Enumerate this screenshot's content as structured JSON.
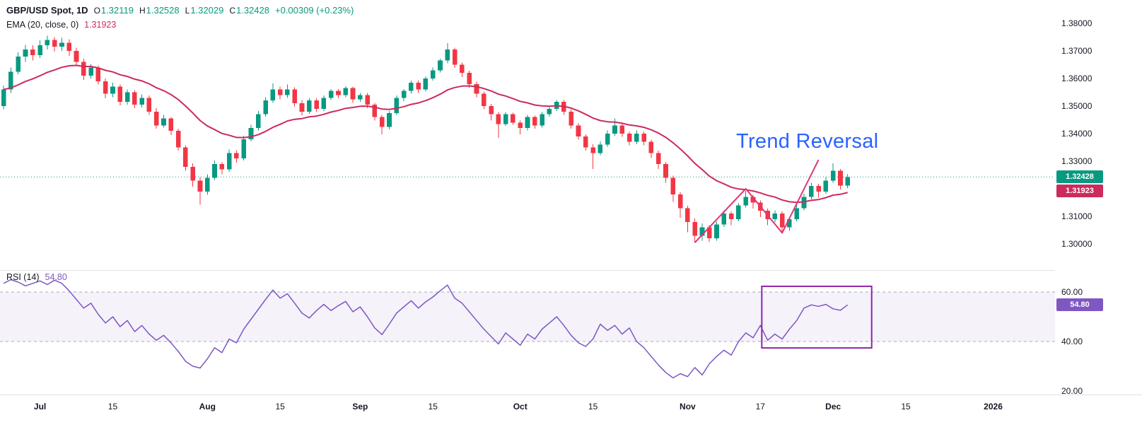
{
  "header": {
    "symbol_line": {
      "title": "GBP/USD Spot, 1D",
      "o_label": "O",
      "o_value": "1.32119",
      "h_label": "H",
      "h_value": "1.32528",
      "l_label": "L",
      "l_value": "1.32029",
      "c_label": "C",
      "c_value": "1.32428",
      "change": "+0.00309 (+0.23%)"
    },
    "ema_line": {
      "label": "EMA (20, close, 0)",
      "value": "1.31923"
    }
  },
  "rsi_legend": {
    "label": "RSI (14)",
    "value": "54.80"
  },
  "annotation": {
    "text": "Trend Reversal"
  },
  "badges": {
    "close": {
      "text": "1.32428",
      "value": 1.32428
    },
    "ema": {
      "text": "1.31923",
      "value": 1.31923
    },
    "rsi": {
      "text": "54.80",
      "value": 54.8
    }
  },
  "price_axis": {
    "labels": [
      {
        "text": "1.38000",
        "value": 1.38
      },
      {
        "text": "1.37000",
        "value": 1.37
      },
      {
        "text": "1.36000",
        "value": 1.36
      },
      {
        "text": "1.35000",
        "value": 1.35
      },
      {
        "text": "1.34000",
        "value": 1.34
      },
      {
        "text": "1.33000",
        "value": 1.33
      },
      {
        "text": "1.31000",
        "value": 1.31
      },
      {
        "text": "1.30000",
        "value": 1.3
      }
    ]
  },
  "rsi_axis": {
    "labels": [
      {
        "text": "60.00",
        "value": 60
      },
      {
        "text": "40.00",
        "value": 40
      },
      {
        "text": "20.00",
        "value": 20
      }
    ]
  },
  "time_axis": {
    "labels": [
      {
        "text": "Jul",
        "i": 5,
        "strong": true
      },
      {
        "text": "15",
        "i": 15
      },
      {
        "text": "Aug",
        "i": 28,
        "strong": true
      },
      {
        "text": "15",
        "i": 38
      },
      {
        "text": "Sep",
        "i": 49,
        "strong": true
      },
      {
        "text": "15",
        "i": 59
      },
      {
        "text": "Oct",
        "i": 71,
        "strong": true
      },
      {
        "text": "15",
        "i": 81
      },
      {
        "text": "Nov",
        "i": 94,
        "strong": true
      },
      {
        "text": "17",
        "i": 104
      },
      {
        "text": "Dec",
        "i": 114,
        "strong": true
      },
      {
        "text": "15",
        "i": 124
      },
      {
        "text": "2026",
        "i": 136,
        "strong": true
      }
    ]
  },
  "style": {
    "up_color": "#089981",
    "down_color": "#f23645",
    "ema_color": "#cc2b5d",
    "rsi_color": "#7e57c2",
    "annotation_color": "#2962ff",
    "drawing_color": "#8e24aa",
    "trendline_color": "#e0357a",
    "text_color": "#131722",
    "separator_color": "#e0e3eb",
    "band_line_color": "#a5abbd"
  },
  "chart_data": {
    "type": "candlestick",
    "title": "GBP/USD Spot, 1D",
    "panes": [
      "price",
      "rsi"
    ],
    "price_ylim": [
      1.2905,
      1.3885
    ],
    "rsi_ylim": [
      18.6,
      68.9
    ],
    "x_tick_labels": [
      "Jul",
      "15",
      "Aug",
      "15",
      "Sep",
      "15",
      "Oct",
      "15",
      "Nov",
      "17",
      "Dec",
      "15",
      "2026"
    ],
    "last_close": 1.32428,
    "ohlc": [
      [
        1.35,
        1.3575,
        1.3488,
        1.356
      ],
      [
        1.356,
        1.364,
        1.3548,
        1.3625
      ],
      [
        1.3625,
        1.3695,
        1.3615,
        1.368
      ],
      [
        1.368,
        1.3722,
        1.366,
        1.3705
      ],
      [
        1.3705,
        1.372,
        1.3665,
        1.3685
      ],
      [
        1.3685,
        1.3738,
        1.3675,
        1.372
      ],
      [
        1.372,
        1.3755,
        1.3705,
        1.374
      ],
      [
        1.374,
        1.375,
        1.3698,
        1.3715
      ],
      [
        1.3715,
        1.3748,
        1.37,
        1.373
      ],
      [
        1.373,
        1.3742,
        1.3682,
        1.37
      ],
      [
        1.37,
        1.3712,
        1.3645,
        1.366
      ],
      [
        1.366,
        1.3672,
        1.3595,
        1.361
      ],
      [
        1.361,
        1.3652,
        1.36,
        1.364
      ],
      [
        1.364,
        1.3648,
        1.3578,
        1.359
      ],
      [
        1.359,
        1.36,
        1.3528,
        1.3545
      ],
      [
        1.3545,
        1.3585,
        1.3532,
        1.357
      ],
      [
        1.357,
        1.3578,
        1.3502,
        1.3515
      ],
      [
        1.3515,
        1.356,
        1.3505,
        1.355
      ],
      [
        1.355,
        1.3558,
        1.3492,
        1.3505
      ],
      [
        1.3505,
        1.3542,
        1.3495,
        1.353
      ],
      [
        1.353,
        1.3538,
        1.3468,
        1.348
      ],
      [
        1.348,
        1.3492,
        1.3418,
        1.343
      ],
      [
        1.343,
        1.3468,
        1.3422,
        1.3455
      ],
      [
        1.3455,
        1.346,
        1.3395,
        1.341
      ],
      [
        1.341,
        1.3418,
        1.3338,
        1.335
      ],
      [
        1.335,
        1.3358,
        1.3265,
        1.328
      ],
      [
        1.328,
        1.3292,
        1.3208,
        1.323
      ],
      [
        1.323,
        1.3242,
        1.3142,
        1.319
      ],
      [
        1.319,
        1.3252,
        1.3178,
        1.324
      ],
      [
        1.324,
        1.3302,
        1.3232,
        1.329
      ],
      [
        1.329,
        1.3298,
        1.3252,
        1.327
      ],
      [
        1.327,
        1.3342,
        1.3262,
        1.333
      ],
      [
        1.333,
        1.334,
        1.3295,
        1.331
      ],
      [
        1.331,
        1.3392,
        1.3302,
        1.338
      ],
      [
        1.338,
        1.3432,
        1.3372,
        1.342
      ],
      [
        1.342,
        1.3482,
        1.3412,
        1.347
      ],
      [
        1.347,
        1.3532,
        1.3462,
        1.352
      ],
      [
        1.352,
        1.3582,
        1.3512,
        1.356
      ],
      [
        1.356,
        1.357,
        1.3525,
        1.354
      ],
      [
        1.354,
        1.3578,
        1.353,
        1.356
      ],
      [
        1.356,
        1.3568,
        1.3498,
        1.351
      ],
      [
        1.351,
        1.3522,
        1.3465,
        1.348
      ],
      [
        1.348,
        1.3528,
        1.3472,
        1.352
      ],
      [
        1.352,
        1.3528,
        1.3478,
        1.349
      ],
      [
        1.349,
        1.3538,
        1.3482,
        1.353
      ],
      [
        1.353,
        1.3562,
        1.3522,
        1.3555
      ],
      [
        1.3555,
        1.3562,
        1.3528,
        1.354
      ],
      [
        1.354,
        1.3572,
        1.3532,
        1.3565
      ],
      [
        1.3565,
        1.357,
        1.3512,
        1.3525
      ],
      [
        1.3525,
        1.3548,
        1.3515,
        1.354
      ],
      [
        1.354,
        1.3548,
        1.3492,
        1.3505
      ],
      [
        1.3505,
        1.3512,
        1.3448,
        1.346
      ],
      [
        1.346,
        1.3468,
        1.3398,
        1.3425
      ],
      [
        1.3425,
        1.3482,
        1.3415,
        1.3475
      ],
      [
        1.3475,
        1.3538,
        1.3468,
        1.353
      ],
      [
        1.353,
        1.3562,
        1.3518,
        1.3555
      ],
      [
        1.3555,
        1.3592,
        1.3545,
        1.3585
      ],
      [
        1.3585,
        1.3592,
        1.3548,
        1.356
      ],
      [
        1.356,
        1.3608,
        1.3552,
        1.36
      ],
      [
        1.36,
        1.364,
        1.3592,
        1.363
      ],
      [
        1.363,
        1.3672,
        1.3622,
        1.3665
      ],
      [
        1.3665,
        1.3728,
        1.3655,
        1.3705
      ],
      [
        1.3705,
        1.3712,
        1.3638,
        1.365
      ],
      [
        1.365,
        1.3658,
        1.3605,
        1.362
      ],
      [
        1.362,
        1.3628,
        1.3565,
        1.358
      ],
      [
        1.358,
        1.3588,
        1.3532,
        1.3545
      ],
      [
        1.3545,
        1.3552,
        1.3488,
        1.35
      ],
      [
        1.35,
        1.3508,
        1.3448,
        1.347
      ],
      [
        1.347,
        1.3478,
        1.3385,
        1.3435
      ],
      [
        1.3435,
        1.3478,
        1.3428,
        1.347
      ],
      [
        1.347,
        1.3476,
        1.3432,
        1.344
      ],
      [
        1.344,
        1.3448,
        1.3398,
        1.342
      ],
      [
        1.342,
        1.3468,
        1.3412,
        1.346
      ],
      [
        1.346,
        1.3466,
        1.3418,
        1.343
      ],
      [
        1.343,
        1.3478,
        1.3422,
        1.347
      ],
      [
        1.347,
        1.3498,
        1.3462,
        1.349
      ],
      [
        1.349,
        1.3522,
        1.3482,
        1.3515
      ],
      [
        1.3515,
        1.3522,
        1.3468,
        1.348
      ],
      [
        1.348,
        1.3488,
        1.3418,
        1.343
      ],
      [
        1.343,
        1.3438,
        1.3378,
        1.339
      ],
      [
        1.339,
        1.3398,
        1.3338,
        1.335
      ],
      [
        1.335,
        1.3362,
        1.3272,
        1.333
      ],
      [
        1.333,
        1.3372,
        1.3322,
        1.336
      ],
      [
        1.336,
        1.3412,
        1.3352,
        1.34
      ],
      [
        1.34,
        1.3455,
        1.3392,
        1.343
      ],
      [
        1.343,
        1.3438,
        1.3388,
        1.34
      ],
      [
        1.34,
        1.3408,
        1.3358,
        1.337
      ],
      [
        1.337,
        1.3412,
        1.3362,
        1.34
      ],
      [
        1.34,
        1.3408,
        1.3358,
        1.337
      ],
      [
        1.337,
        1.3378,
        1.3312,
        1.333
      ],
      [
        1.333,
        1.3338,
        1.3272,
        1.329
      ],
      [
        1.329,
        1.3298,
        1.3222,
        1.324
      ],
      [
        1.324,
        1.3248,
        1.3152,
        1.318
      ],
      [
        1.318,
        1.3188,
        1.3095,
        1.313
      ],
      [
        1.313,
        1.3138,
        1.3042,
        1.308
      ],
      [
        1.308,
        1.3092,
        1.3005,
        1.303
      ],
      [
        1.303,
        1.3075,
        1.3012,
        1.306
      ],
      [
        1.306,
        1.3068,
        1.3008,
        1.302
      ],
      [
        1.302,
        1.3082,
        1.3012,
        1.307
      ],
      [
        1.307,
        1.3122,
        1.3062,
        1.311
      ],
      [
        1.311,
        1.3118,
        1.3068,
        1.309
      ],
      [
        1.309,
        1.3148,
        1.3082,
        1.314
      ],
      [
        1.314,
        1.3192,
        1.3132,
        1.317
      ],
      [
        1.317,
        1.3178,
        1.3128,
        1.315
      ],
      [
        1.315,
        1.3158,
        1.3098,
        1.312
      ],
      [
        1.312,
        1.3128,
        1.3068,
        1.309
      ],
      [
        1.309,
        1.3122,
        1.3078,
        1.311
      ],
      [
        1.311,
        1.3118,
        1.3038,
        1.306
      ],
      [
        1.306,
        1.3098,
        1.3048,
        1.309
      ],
      [
        1.309,
        1.3142,
        1.3082,
        1.313
      ],
      [
        1.313,
        1.3182,
        1.3122,
        1.317
      ],
      [
        1.317,
        1.3222,
        1.3162,
        1.321
      ],
      [
        1.321,
        1.3218,
        1.3168,
        1.319
      ],
      [
        1.319,
        1.3242,
        1.3182,
        1.323
      ],
      [
        1.323,
        1.3292,
        1.3222,
        1.3265
      ],
      [
        1.3265,
        1.3272,
        1.3198,
        1.3212
      ],
      [
        1.32119,
        1.32528,
        1.32029,
        1.32428
      ]
    ],
    "indicators": {
      "ema": {
        "period": 20,
        "source": "close",
        "offset": 0,
        "last": 1.31923
      },
      "rsi": {
        "period": 14,
        "last": 54.8,
        "band": [
          40,
          60
        ],
        "values": [
          63.5,
          65,
          64,
          62.5,
          63.5,
          64.5,
          63,
          64.8,
          63.5,
          60.5,
          57,
          53.5,
          55.5,
          51,
          47.5,
          50,
          46,
          48.5,
          44,
          46.5,
          43,
          40.5,
          42.5,
          39.5,
          36,
          32,
          30,
          29.3,
          33,
          37.5,
          35.5,
          41,
          39.5,
          45,
          49,
          53,
          57,
          60.8,
          57.5,
          59.3,
          55.5,
          51.5,
          49.5,
          52.5,
          55,
          52.5,
          54.5,
          56.2,
          52,
          54,
          50,
          45.5,
          42.8,
          47,
          51.5,
          54,
          56.5,
          53.5,
          56,
          58,
          60.5,
          62.8,
          57.5,
          55.5,
          52,
          48.5,
          45,
          42,
          39,
          43.5,
          41,
          38.5,
          43,
          41,
          45,
          47.5,
          50,
          46.5,
          42.5,
          39.5,
          38,
          41,
          47,
          44.5,
          46.5,
          43,
          45.5,
          40,
          37.5,
          34,
          30.5,
          27.5,
          25.3,
          27,
          25.8,
          29.5,
          26.5,
          31,
          34,
          36.5,
          34.5,
          40,
          43.5,
          41.5,
          46.5,
          40.5,
          43,
          41,
          45,
          48.5,
          53.5,
          54.8,
          54.2,
          55,
          53.2,
          52.6,
          54.8
        ]
      }
    },
    "drawings": {
      "trendline_points": [
        [
          95,
          1.3005
        ],
        [
          102,
          1.32
        ],
        [
          107,
          1.304
        ],
        [
          112,
          1.3305
        ]
      ],
      "rsi_box": {
        "i0": 104.2,
        "i1": 119.3,
        "v0": 37.4,
        "v1": 62.3
      },
      "annotation_text": "Trend Reversal"
    }
  }
}
